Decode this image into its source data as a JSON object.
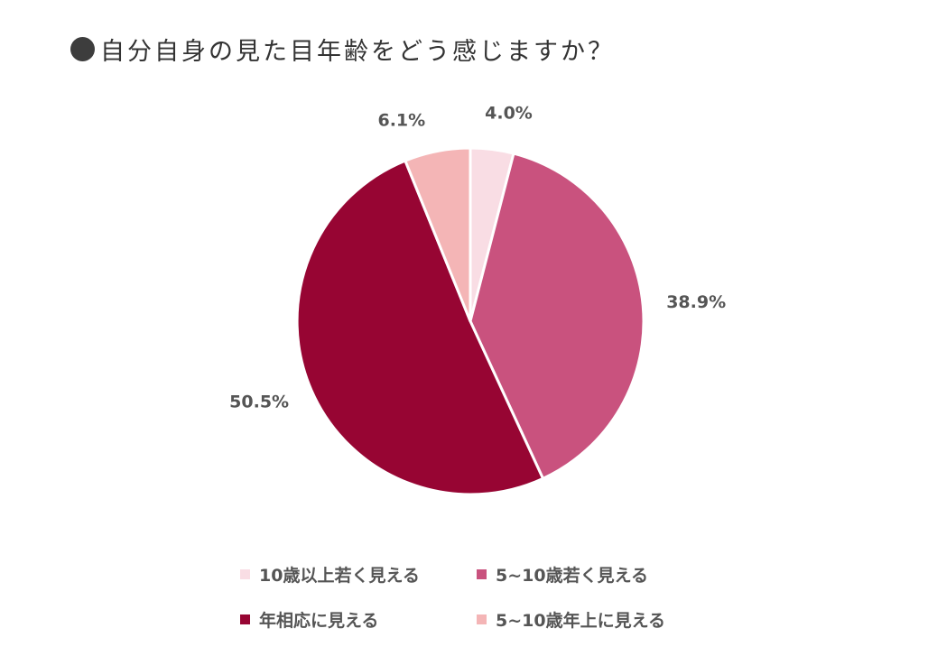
{
  "title": "自分自身の見た目年齢をどう感じますか？",
  "chart_data": {
    "type": "pie",
    "title": "自分自身の見た目年齢をどう感じますか？",
    "categories": [
      "10歳以上若く見える",
      "5~10歳若く見える",
      "年相応に見える",
      "5~10歳年上に見える"
    ],
    "values": [
      4.0,
      38.9,
      50.5,
      6.1
    ],
    "labels": [
      "4.0%",
      "38.9%",
      "50.5%",
      "6.1%"
    ],
    "colors": [
      "#F9DDE4",
      "#C9527E",
      "#970533",
      "#F4B5B6"
    ],
    "legend_position": "bottom",
    "start_angle_deg": 0,
    "direction": "clockwise"
  }
}
